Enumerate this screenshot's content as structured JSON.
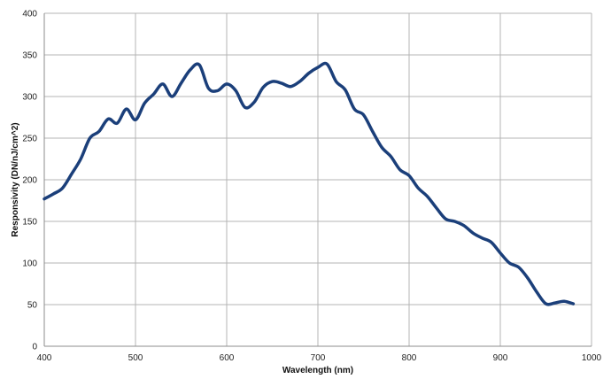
{
  "colors": {
    "line": "#1b3f7a",
    "grid": "#b4b4b4",
    "axis": "#8c8c8c",
    "background": "#ffffff"
  },
  "chart_data": {
    "type": "line",
    "title": "",
    "xlabel": "Wavelength (nm)",
    "ylabel": "Responsivity (DN/nJ/cm^2)",
    "xlim": [
      400,
      1000
    ],
    "ylim": [
      0,
      400
    ],
    "xticks": [
      400,
      500,
      600,
      700,
      800,
      900,
      1000
    ],
    "yticks": [
      0,
      50,
      100,
      150,
      200,
      250,
      300,
      350,
      400
    ],
    "grid": true,
    "legend": "none",
    "series": [
      {
        "x": [
          400,
          410,
          420,
          430,
          440,
          450,
          460,
          470,
          480,
          490,
          500,
          510,
          520,
          530,
          540,
          550,
          560,
          570,
          580,
          590,
          600,
          610,
          620,
          630,
          640,
          650,
          660,
          670,
          680,
          690,
          700,
          710,
          720,
          730,
          740,
          750,
          760,
          770,
          780,
          790,
          800,
          810,
          820,
          830,
          840,
          850,
          860,
          870,
          880,
          890,
          900,
          910,
          920,
          930,
          940,
          950,
          960,
          970,
          980
        ],
        "values": [
          177,
          183,
          190,
          207,
          225,
          250,
          258,
          273,
          268,
          285,
          272,
          292,
          303,
          315,
          300,
          316,
          332,
          338,
          310,
          307,
          315,
          307,
          287,
          293,
          311,
          318,
          316,
          312,
          318,
          328,
          335,
          339,
          318,
          308,
          285,
          278,
          258,
          239,
          228,
          212,
          205,
          190,
          180,
          166,
          153,
          150,
          145,
          136,
          130,
          125,
          112,
          100,
          95,
          82,
          65,
          51,
          52,
          54,
          51
        ]
      }
    ]
  }
}
